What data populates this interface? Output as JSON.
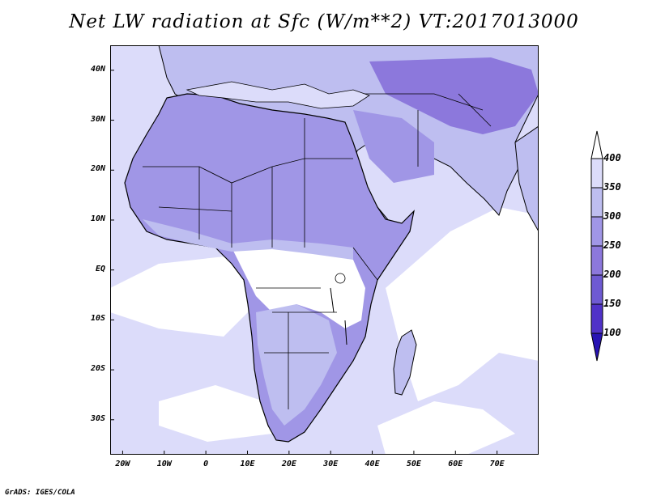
{
  "title": "Net LW radiation at Sfc (W/m**2) VT:2017013000",
  "credit": "GrADS: IGES/COLA",
  "map": {
    "region": "Africa and Middle East",
    "lon_range": [
      -23,
      80
    ],
    "lat_range": [
      -37,
      45
    ],
    "lat_ticks": [
      {
        "value": 40,
        "label": "40N"
      },
      {
        "value": 30,
        "label": "30N"
      },
      {
        "value": 20,
        "label": "20N"
      },
      {
        "value": 10,
        "label": "10N"
      },
      {
        "value": 0,
        "label": "EQ"
      },
      {
        "value": -10,
        "label": "10S"
      },
      {
        "value": -20,
        "label": "20S"
      },
      {
        "value": -30,
        "label": "30S"
      }
    ],
    "lon_ticks": [
      {
        "value": -20,
        "label": "20W"
      },
      {
        "value": -10,
        "label": "10W"
      },
      {
        "value": 0,
        "label": "0"
      },
      {
        "value": 10,
        "label": "10E"
      },
      {
        "value": 20,
        "label": "20E"
      },
      {
        "value": 30,
        "label": "30E"
      },
      {
        "value": 40,
        "label": "40E"
      },
      {
        "value": 50,
        "label": "50E"
      },
      {
        "value": 60,
        "label": "60E"
      },
      {
        "value": 70,
        "label": "70E"
      }
    ]
  },
  "colorbar": {
    "levels": [
      "400",
      "350",
      "300",
      "250",
      "200",
      "150",
      "100"
    ],
    "colors": [
      "#dcdcfa",
      "#bebef0",
      "#a096e6",
      "#8c78dc",
      "#6e5ad2",
      "#5032c8",
      "#2814b4"
    ],
    "top_color": "#ffffff",
    "bottom_color": "#2814b4"
  },
  "colors": {
    "ocean": "#dcdcfa",
    "land_light": "#ffffff",
    "land_mid": "#bebef0",
    "land_dark": "#a096e6",
    "land_darker": "#8c78dc",
    "outline": "#000000"
  }
}
